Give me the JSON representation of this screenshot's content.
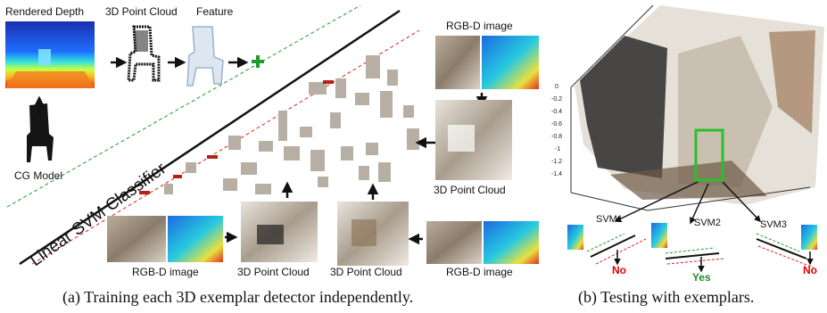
{
  "panel_a": {
    "labels": {
      "rendered_depth": "Rendered Depth",
      "point_cloud_top": "3D Point Cloud",
      "feature": "Feature",
      "cg_model": "CG Model",
      "rgbd_top_right": "RGB-D image",
      "point_cloud_right": "3D Point Cloud",
      "rgbd_bottom_left": "RGB-D image",
      "point_cloud_bottom_1": "3D Point Cloud",
      "point_cloud_bottom_2": "3D Point Cloud",
      "rgbd_bottom_right": "RGB-D image",
      "classifier": "Linear SVM Classifier"
    },
    "caption": "(a)  Training each 3D exemplar detector independently."
  },
  "panel_b": {
    "axis_ticks": [
      "0",
      "-0.2",
      "-0.4",
      "-0.6",
      "-0.8",
      "-1",
      "-1.2",
      "-1.4"
    ],
    "svm_labels": [
      "SVM1",
      "SVM2",
      "SVM3"
    ],
    "results": [
      "No",
      "Yes",
      "No"
    ],
    "caption": "(b)  Testing with exemplars.",
    "colors": {
      "no": "#e00000",
      "yes": "#2a8a2a",
      "box": "#2bbf2b"
    }
  }
}
